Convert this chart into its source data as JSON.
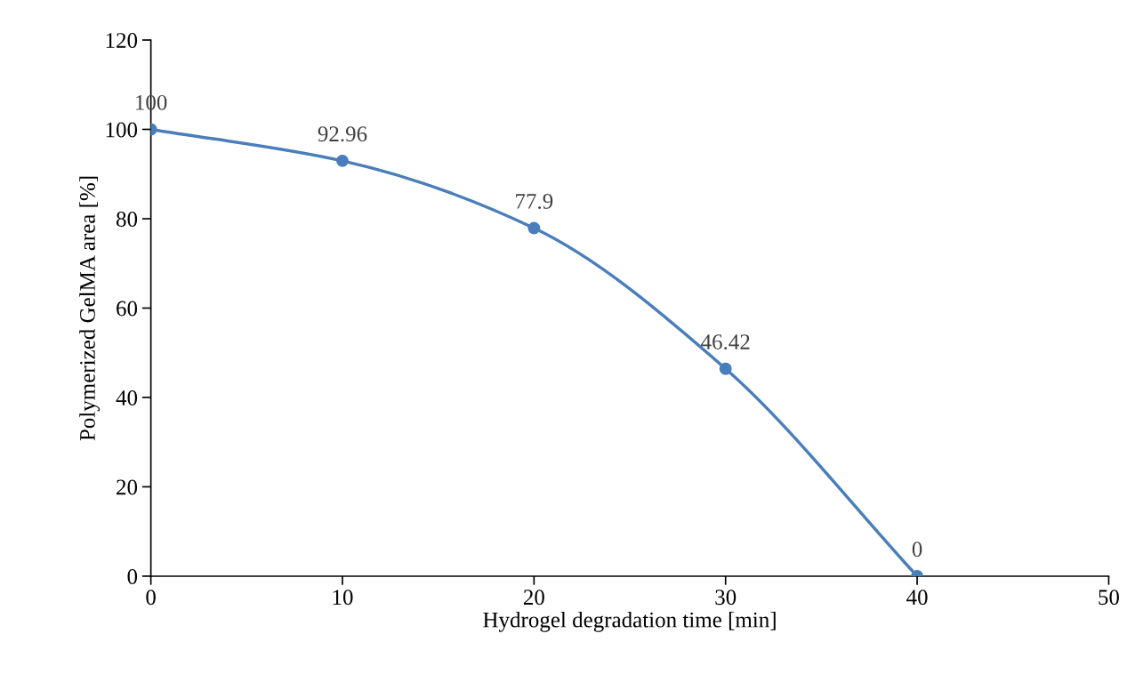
{
  "chart_data": {
    "type": "line",
    "xlabel": "Hydrogel degradation time [min]",
    "ylabel": "Polymerized GelMA area [%]",
    "x": [
      0,
      10,
      20,
      30,
      40
    ],
    "series": [
      {
        "color": "#4a7ebb",
        "values": [
          100,
          92.96,
          77.9,
          46.42,
          0
        ]
      }
    ],
    "data_labels": true,
    "marker": "circle",
    "line_style": "solid",
    "grid": false,
    "legend": false,
    "xlim": [
      0,
      50
    ],
    "xticks": [
      0,
      10,
      20,
      30,
      40,
      50
    ],
    "ylim": [
      0,
      120
    ],
    "yticks": [
      0,
      20,
      40,
      60,
      80,
      100,
      120
    ]
  }
}
